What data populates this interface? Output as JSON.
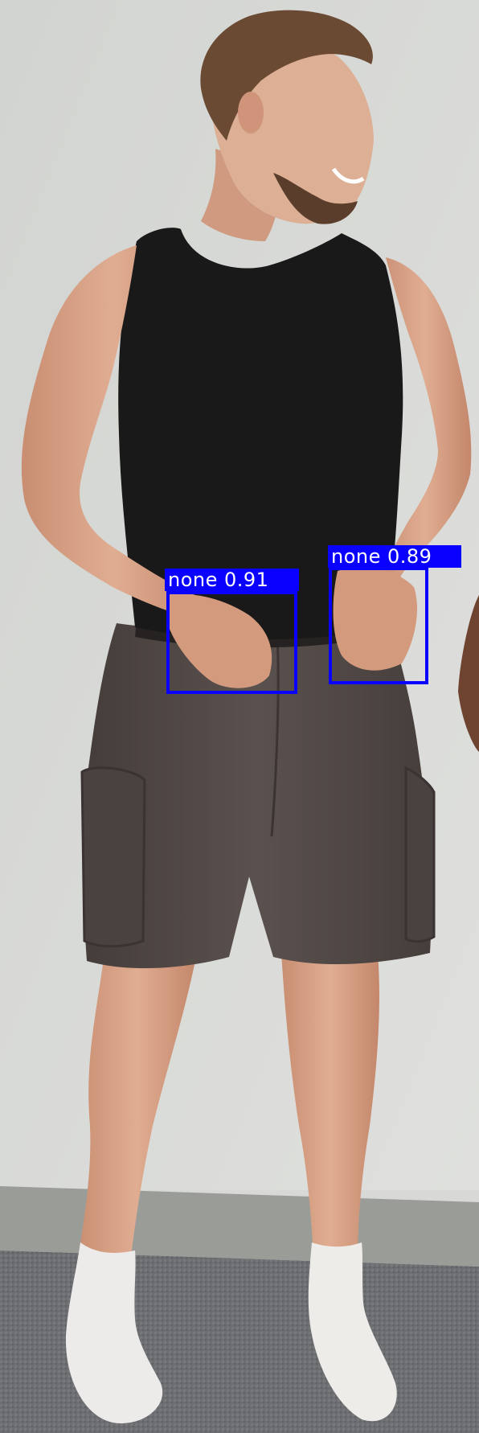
{
  "detections": [
    {
      "label": "none",
      "score": "0.91",
      "caption": "none 0.91",
      "box_color": "#0a00ff"
    },
    {
      "label": "none",
      "score": "0.89",
      "caption": "none 0.89",
      "box_color": "#0a00ff"
    }
  ],
  "colors": {
    "wall": "#d8d9d6",
    "baseboard": "#9a9c98",
    "carpet": "#6f7174",
    "skin": "#d9a589",
    "tank_top": "#191919",
    "shorts": "#4f4744",
    "socks": "#eeeceb",
    "hair": "#6b4a33"
  }
}
